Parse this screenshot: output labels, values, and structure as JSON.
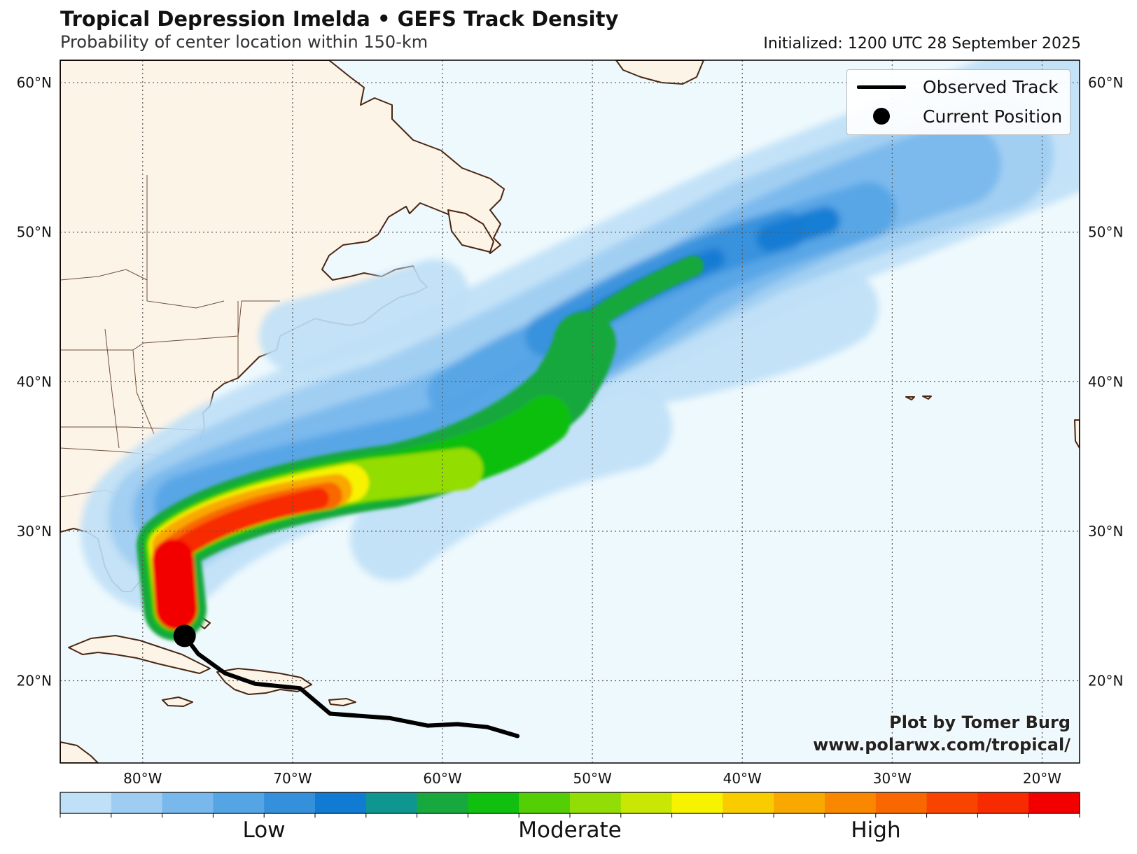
{
  "header": {
    "title": "Tropical Depression Imelda • GEFS Track Density",
    "subtitle": "Probability of center location within 150-km",
    "initialized": "Initialized: 1200 UTC 28 September 2025"
  },
  "legend": {
    "observed_track": "Observed Track",
    "current_position": "Current Position"
  },
  "credit": {
    "line1": "Plot by Tomer Burg",
    "line2": "www.polarwx.com/tropical/"
  },
  "axes": {
    "lat_labels": [
      "60°N",
      "50°N",
      "40°N",
      "30°N",
      "20°N"
    ],
    "lat_values": [
      60,
      50,
      40,
      30,
      20
    ],
    "lon_labels": [
      "80°W",
      "70°W",
      "60°W",
      "50°W",
      "40°W",
      "30°W",
      "20°W"
    ],
    "lon_values": [
      -80,
      -70,
      -60,
      -50,
      -40,
      -30,
      -20
    ],
    "lon_range": [
      -85.5,
      -17.5
    ],
    "lat_range": [
      14.5,
      61.5
    ]
  },
  "colorbar": {
    "labels": [
      "Low",
      "Moderate",
      "High"
    ],
    "colors": [
      "#bfe0f7",
      "#9fcdf2",
      "#78b8ec",
      "#55a4e4",
      "#3590dc",
      "#117ad2",
      "#0f9690",
      "#17a83e",
      "#11bf10",
      "#54cf06",
      "#93dd06",
      "#c8e705",
      "#f7f200",
      "#f9cc00",
      "#f9a800",
      "#f98800",
      "#f96800",
      "#f94400",
      "#f72a00",
      "#f20000"
    ]
  },
  "colors": {
    "ocean": "#eef9fd",
    "land": "#fdf4e8",
    "coast": "#4a2612",
    "track": "#000000"
  },
  "track": {
    "observed": [
      [
        -55,
        16.3
      ],
      [
        -57,
        16.9
      ],
      [
        -59,
        17.1
      ],
      [
        -61,
        17.0
      ],
      [
        -63.5,
        17.5
      ],
      [
        -67.5,
        17.8
      ],
      [
        -69.5,
        19.5
      ],
      [
        -72.5,
        19.8
      ],
      [
        -74.5,
        20.5
      ],
      [
        -76.3,
        21.8
      ],
      [
        -77.2,
        23.0
      ]
    ],
    "current_position": [
      -77.2,
      23.0
    ]
  }
}
